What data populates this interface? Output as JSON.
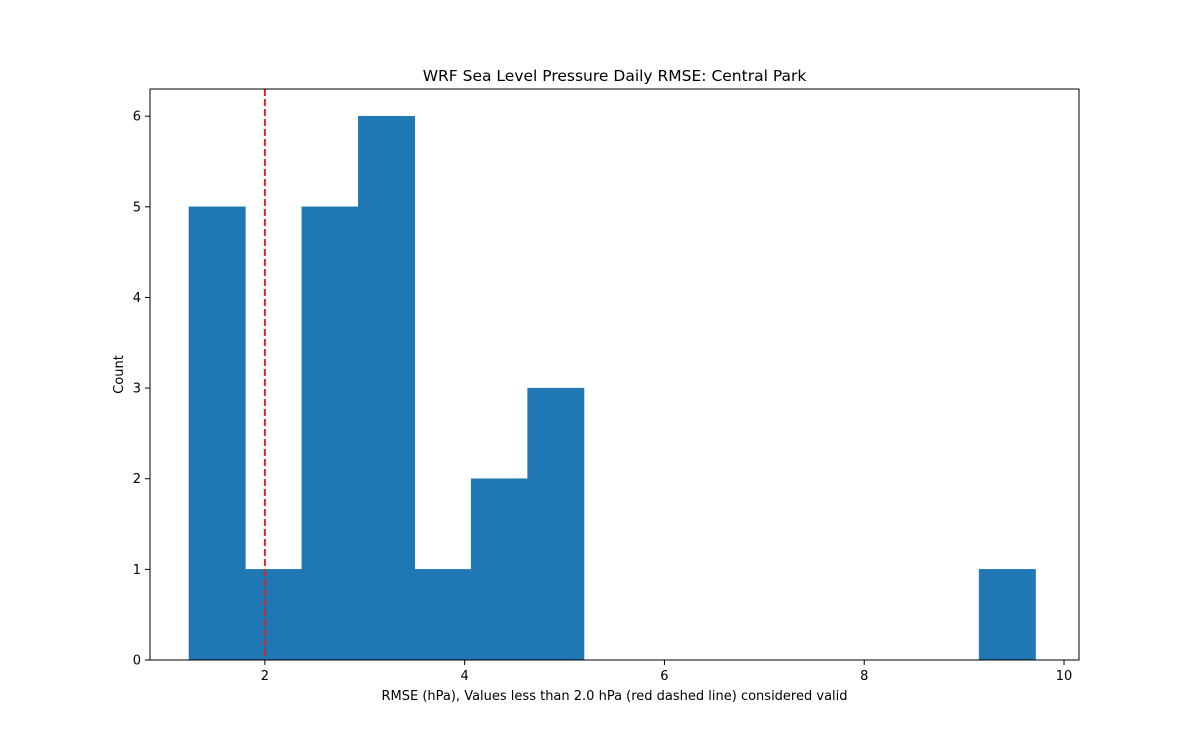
{
  "chart_data": {
    "type": "bar",
    "title": "WRF Sea Level Pressure Daily RMSE: Central Park",
    "xlabel": "RMSE (hPa), Values less than 2.0 hPa (red dashed line) considered valid",
    "ylabel": "Count",
    "xlim": [
      0.85,
      10.15
    ],
    "ylim": [
      0,
      6.3
    ],
    "xticks": [
      2,
      4,
      6,
      8,
      10
    ],
    "yticks": [
      0,
      1,
      2,
      3,
      4,
      5,
      6
    ],
    "bins": [
      {
        "start": 1.24,
        "end": 1.805,
        "count": 5
      },
      {
        "start": 1.805,
        "end": 2.37,
        "count": 1
      },
      {
        "start": 2.37,
        "end": 2.935,
        "count": 5
      },
      {
        "start": 2.935,
        "end": 3.5,
        "count": 6
      },
      {
        "start": 3.5,
        "end": 4.065,
        "count": 1
      },
      {
        "start": 4.065,
        "end": 4.63,
        "count": 2
      },
      {
        "start": 4.63,
        "end": 5.195,
        "count": 3
      },
      {
        "start": 5.195,
        "end": 5.76,
        "count": 0
      },
      {
        "start": 5.76,
        "end": 6.325,
        "count": 0
      },
      {
        "start": 6.325,
        "end": 6.89,
        "count": 0
      },
      {
        "start": 6.89,
        "end": 7.455,
        "count": 0
      },
      {
        "start": 7.455,
        "end": 8.02,
        "count": 0
      },
      {
        "start": 8.02,
        "end": 8.585,
        "count": 0
      },
      {
        "start": 8.585,
        "end": 9.15,
        "count": 0
      },
      {
        "start": 9.15,
        "end": 9.715,
        "count": 1
      }
    ],
    "threshold_line": {
      "x": 2.0,
      "style": "dashed",
      "color": "#d62728"
    },
    "bar_color": "#1f77b4",
    "grid": false,
    "legend": "none"
  }
}
